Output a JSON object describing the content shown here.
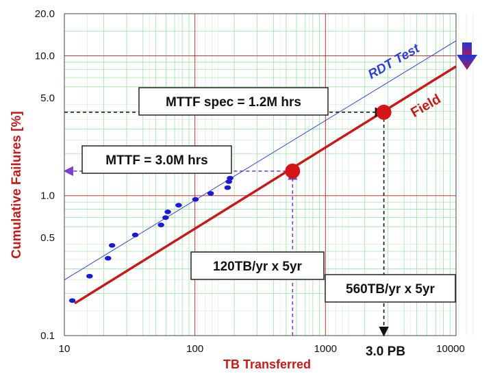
{
  "chart_data": {
    "type": "scatter",
    "xlabel": "TB Transferred",
    "ylabel": "Cumulative Failures [%]",
    "x_scale": "log",
    "y_scale": "log",
    "xlim": [
      10,
      10000
    ],
    "ylim": [
      0.1,
      20
    ],
    "x_ticks": [
      {
        "value": 10,
        "label": "10"
      },
      {
        "value": 100,
        "label": "100"
      },
      {
        "value": 1000,
        "label": "1000"
      },
      {
        "value": 10000,
        "label": "10000"
      }
    ],
    "y_ticks": [
      {
        "value": 0.1,
        "label": "0.1"
      },
      {
        "value": 0.5,
        "label": "0.5"
      },
      {
        "value": 1.0,
        "label": "1.0"
      },
      {
        "value": 5.0,
        "label": "5.0"
      },
      {
        "value": 10.0,
        "label": "10.0"
      },
      {
        "value": 20.0,
        "label": "20.0"
      }
    ],
    "grid": true,
    "series": [
      {
        "name": "RDT Test",
        "kind": "fit-line",
        "color": "#2e3fd6",
        "x": [
          10,
          10000
        ],
        "y": [
          0.25,
          12.8
        ]
      },
      {
        "name": "Field",
        "kind": "fit-line",
        "color": "#c41a1a",
        "x": [
          12,
          10000
        ],
        "y": [
          0.17,
          8.4
        ]
      },
      {
        "name": "",
        "kind": "points",
        "color": "#1a1ad6",
        "x": [
          11.5,
          15.6,
          21.6,
          23.2,
          34.9,
          55,
          59.6,
          62,
          75,
          101,
          132,
          178,
          182,
          186
        ],
        "y": [
          0.178,
          0.266,
          0.357,
          0.441,
          0.524,
          0.618,
          0.697,
          0.766,
          0.855,
          0.941,
          1.038,
          1.142,
          1.261,
          1.335
        ]
      }
    ],
    "highlights": [
      {
        "name": "",
        "x": 560,
        "y": 1.5,
        "color": "#d41515"
      },
      {
        "name": "",
        "x": 2800,
        "y": 3.95,
        "color": "#d41515"
      }
    ],
    "guides": [
      {
        "color": "#7a3fcf",
        "from": [
          560,
          1.5
        ],
        "to": [
          10,
          1.5
        ],
        "arrow": "end"
      },
      {
        "color": "#7a3fcf",
        "from": [
          560,
          0.1
        ],
        "to": [
          560,
          1.5
        ],
        "arrow": "end"
      },
      {
        "color": "#111111",
        "from": [
          10,
          3.95
        ],
        "to": [
          2800,
          3.95
        ],
        "arrow": "end"
      },
      {
        "color": "#111111",
        "from": [
          2800,
          3.95
        ],
        "to": [
          2800,
          0.1
        ],
        "arrow": "end"
      }
    ],
    "annotations": [
      {
        "id": "mttf-spec",
        "text": "MTTF spec = 1.2M hrs",
        "boxed": true
      },
      {
        "id": "mttf",
        "text": "MTTF = 3.0M hrs",
        "boxed": true
      },
      {
        "id": "rate120",
        "text": "120TB/yr x 5yr",
        "boxed": true
      },
      {
        "id": "rate560",
        "text": "560TB/yr x 5yr",
        "boxed": true
      },
      {
        "id": "pb",
        "text": "3.0 PB",
        "boxed": false
      },
      {
        "id": "rdt",
        "text": "RDT Test",
        "boxed": false,
        "color": "#2e3fd6"
      },
      {
        "id": "field",
        "text": "Field",
        "boxed": false,
        "color": "#c41a1a"
      }
    ],
    "indicator": {
      "name": "down-arrow-icon",
      "color_top": "#1e38d8",
      "color_bottom": "#b01858"
    }
  }
}
